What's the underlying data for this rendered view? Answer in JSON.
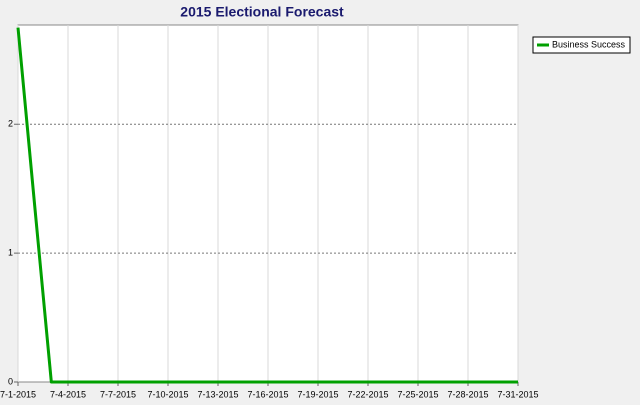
{
  "chart_data": {
    "type": "line",
    "title": "2015 Electional Forecast",
    "categories": [
      "7-1-2015",
      null,
      null,
      "7-4-2015",
      null,
      null,
      "7-7-2015",
      null,
      null,
      "7-10-2015",
      null,
      null,
      "7-13-2015",
      null,
      null,
      "7-16-2015",
      null,
      null,
      "7-19-2015",
      null,
      null,
      "7-22-2015",
      null,
      null,
      "7-25-2015",
      null,
      null,
      "7-28-2015",
      null,
      null,
      "7-31-2015"
    ],
    "series": [
      {
        "name": "Business Success",
        "color": "#00a000",
        "values": [
          2.75,
          1.37,
          0,
          0,
          0,
          0,
          0,
          0,
          0,
          0,
          0,
          0,
          0,
          0,
          0,
          0,
          0,
          0,
          0,
          0,
          0,
          0,
          0,
          0,
          0,
          0,
          0,
          0,
          0,
          0,
          0
        ]
      }
    ],
    "ylim": [
      0,
      2.77
    ],
    "yticks": [
      0,
      1,
      2
    ],
    "grid": true,
    "legend": "top-right"
  }
}
